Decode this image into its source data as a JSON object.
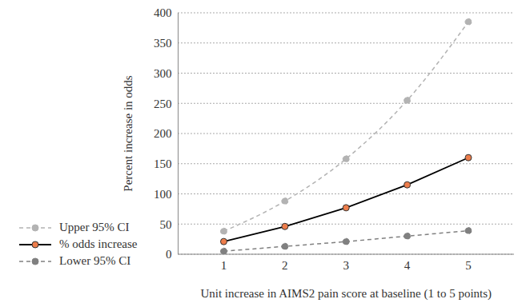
{
  "chart_data": {
    "type": "line",
    "x_label": "Unit increase in AIMS2 pain score at baseline (1 to 5 points)",
    "y_label": "Percent increase in odds",
    "categories": [
      "1",
      "2",
      "3",
      "4",
      "5"
    ],
    "series": [
      {
        "name": "Upper 95% CI",
        "color": "#b3b3b3",
        "values": [
          38,
          88,
          158,
          255,
          385
        ],
        "line_style": "dashed",
        "marker": "circle"
      },
      {
        "name": "% odds increase",
        "color": "#000000",
        "values": [
          21,
          46,
          77,
          115,
          160
        ],
        "line_style": "solid",
        "marker": "circle"
      },
      {
        "name": "Lower 95% CI",
        "color": "#808080",
        "values": [
          5,
          13,
          21,
          30,
          39
        ],
        "line_style": "dashed",
        "marker": "circle"
      }
    ],
    "ylim": [
      0,
      400
    ],
    "yticks": [
      0,
      50,
      100,
      150,
      200,
      250,
      300,
      350,
      400
    ],
    "grid": true,
    "legend": "bottom"
  }
}
